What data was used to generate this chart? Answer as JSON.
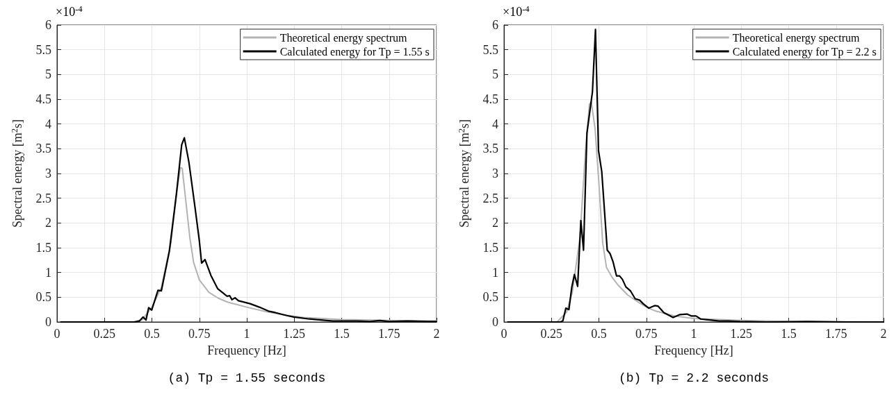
{
  "chart_data": [
    {
      "type": "line",
      "title": "(a) Tp = 1.55 seconds",
      "xlabel": "Frequency [Hz]",
      "ylabel": "Spectral energy [m$^{2}$s]",
      "annotations": [
        "×10$^{-4}$"
      ],
      "xlim": [
        0,
        2
      ],
      "ylim": [
        0,
        6
      ],
      "xticks": [
        0,
        0.25,
        0.5,
        0.75,
        1,
        1.25,
        1.5,
        1.75,
        2
      ],
      "yticks": [
        0,
        0.5,
        1,
        1.5,
        2,
        2.5,
        3,
        3.5,
        4,
        4.5,
        5,
        5.5,
        6
      ],
      "grid": true,
      "legend": "top right",
      "series": [
        {
          "name": "Theoretical energy spectrum",
          "color": "#b3b3b3",
          "x": [
            0.02,
            0.2,
            0.4,
            0.45,
            0.5,
            0.55,
            0.6,
            0.63,
            0.65,
            0.66,
            0.68,
            0.7,
            0.72,
            0.75,
            0.8,
            0.85,
            0.9,
            1.0,
            1.1,
            1.2,
            1.3,
            1.5,
            1.75,
            2
          ],
          "values": [
            0,
            0,
            0,
            0.05,
            0.3,
            0.7,
            1.6,
            2.6,
            3.12,
            3.1,
            2.4,
            1.7,
            1.2,
            0.85,
            0.6,
            0.48,
            0.4,
            0.3,
            0.21,
            0.14,
            0.09,
            0.05,
            0.03,
            0.02
          ]
        },
        {
          "name": "Calculated energy for Tp = 1.55 s",
          "color": "#000000",
          "x": [
            0.02,
            0.2,
            0.41,
            0.435,
            0.453,
            0.469,
            0.483,
            0.499,
            0.532,
            0.55,
            0.592,
            0.629,
            0.657,
            0.671,
            0.695,
            0.726,
            0.75,
            0.762,
            0.78,
            0.811,
            0.847,
            0.896,
            0.91,
            0.922,
            0.938,
            0.956,
            1.017,
            1.066,
            1.114,
            1.15,
            1.211,
            1.248,
            1.33,
            1.454,
            1.58,
            1.65,
            1.7,
            1.75,
            1.85,
            1.95,
            2
          ],
          "values": [
            0,
            0,
            0,
            0.02,
            0.1,
            0.04,
            0.29,
            0.24,
            0.64,
            0.63,
            1.43,
            2.58,
            3.58,
            3.72,
            3.23,
            2.35,
            1.64,
            1.19,
            1.26,
            0.94,
            0.67,
            0.52,
            0.53,
            0.45,
            0.49,
            0.43,
            0.37,
            0.3,
            0.22,
            0.19,
            0.13,
            0.1,
            0.06,
            0.02,
            0.02,
            0.01,
            0.03,
            0.01,
            0.02,
            0.01,
            0.01
          ]
        }
      ]
    },
    {
      "type": "line",
      "title": "(b) Tp = 2.2 seconds",
      "xlabel": "Frequency [Hz]",
      "ylabel": "Spectral energy [m$^{2}$s]",
      "annotations": [
        "×10$^{-4}$"
      ],
      "xlim": [
        0,
        2
      ],
      "ylim": [
        0,
        6
      ],
      "xticks": [
        0,
        0.25,
        0.5,
        0.75,
        1,
        1.25,
        1.5,
        1.75,
        2
      ],
      "yticks": [
        0,
        0.5,
        1,
        1.5,
        2,
        2.5,
        3,
        3.5,
        4,
        4.5,
        5,
        5.5,
        6
      ],
      "grid": true,
      "legend": "top right",
      "series": [
        {
          "name": "Theoretical energy spectrum",
          "color": "#b3b3b3",
          "x": [
            0.02,
            0.15,
            0.28,
            0.33,
            0.36,
            0.4,
            0.43,
            0.45,
            0.46,
            0.48,
            0.5,
            0.52,
            0.54,
            0.57,
            0.6,
            0.65,
            0.7,
            0.75,
            0.8,
            0.9,
            1.0,
            1.25,
            1.5,
            2
          ],
          "values": [
            0,
            0,
            0,
            0.2,
            0.6,
            1.7,
            3.5,
            4.4,
            4.45,
            3.9,
            2.8,
            1.6,
            1.1,
            0.9,
            0.75,
            0.55,
            0.42,
            0.3,
            0.22,
            0.12,
            0.07,
            0.03,
            0.01,
            0
          ]
        },
        {
          "name": "Calculated energy for Tp = 2.2 s",
          "color": "#000000",
          "x": [
            0.02,
            0.15,
            0.284,
            0.296,
            0.31,
            0.326,
            0.342,
            0.357,
            0.371,
            0.388,
            0.405,
            0.419,
            0.437,
            0.466,
            0.482,
            0.498,
            0.515,
            0.544,
            0.559,
            0.575,
            0.593,
            0.609,
            0.624,
            0.642,
            0.666,
            0.691,
            0.715,
            0.733,
            0.763,
            0.794,
            0.812,
            0.842,
            0.891,
            0.927,
            0.964,
            0.988,
            1.012,
            1.036,
            1.085,
            1.133,
            1.182,
            1.243,
            1.38,
            1.6,
            1.8,
            2
          ],
          "values": [
            0,
            0,
            0,
            0,
            0.02,
            0.28,
            0.25,
            0.7,
            0.96,
            0.72,
            2.05,
            1.45,
            3.81,
            4.65,
            5.91,
            3.46,
            3.04,
            1.45,
            1.38,
            1.21,
            0.93,
            0.93,
            0.86,
            0.71,
            0.63,
            0.47,
            0.44,
            0.37,
            0.28,
            0.33,
            0.32,
            0.19,
            0.09,
            0.15,
            0.16,
            0.12,
            0.12,
            0.06,
            0.04,
            0.02,
            0.02,
            0.01,
            0,
            0.01,
            0,
            0
          ]
        }
      ]
    }
  ]
}
